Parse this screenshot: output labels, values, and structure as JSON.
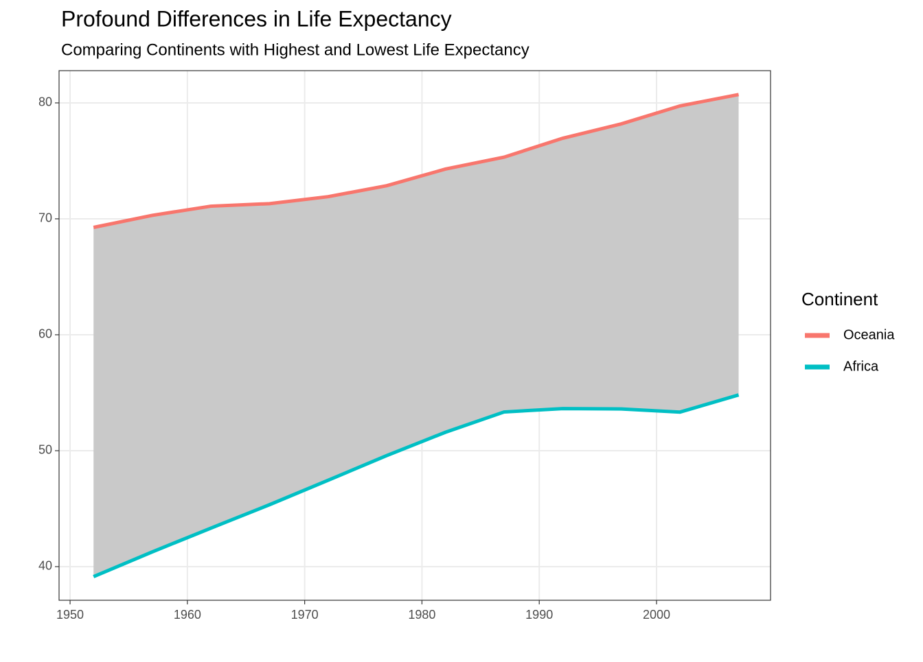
{
  "chart_data": {
    "type": "line",
    "title": "Profound Differences in Life Expectancy",
    "subtitle": "Comparing Continents with Highest and Lowest Life Expectancy",
    "legend_title": "Continent",
    "x": [
      1952,
      1957,
      1962,
      1967,
      1972,
      1977,
      1982,
      1987,
      1992,
      1997,
      2002,
      2007
    ],
    "series": [
      {
        "name": "Oceania",
        "color": "#f8766d",
        "values": [
          69.26,
          70.3,
          71.09,
          71.31,
          71.91,
          72.86,
          74.29,
          75.32,
          76.95,
          78.19,
          79.74,
          80.72
        ]
      },
      {
        "name": "Africa",
        "color": "#00bfc4",
        "values": [
          39.14,
          41.27,
          43.32,
          45.34,
          47.45,
          49.58,
          51.59,
          53.34,
          53.63,
          53.6,
          53.33,
          54.81
        ]
      }
    ],
    "ribbon": true,
    "ribbon_color": "#c9c9c9",
    "xlim": [
      1949.06,
      2009.72
    ],
    "ylim": [
      37.1,
      82.78
    ],
    "xticks": [
      1950,
      1960,
      1970,
      1980,
      1990,
      2000
    ],
    "yticks": [
      40,
      50,
      60,
      70,
      80
    ],
    "grid": true,
    "legend": "right"
  }
}
